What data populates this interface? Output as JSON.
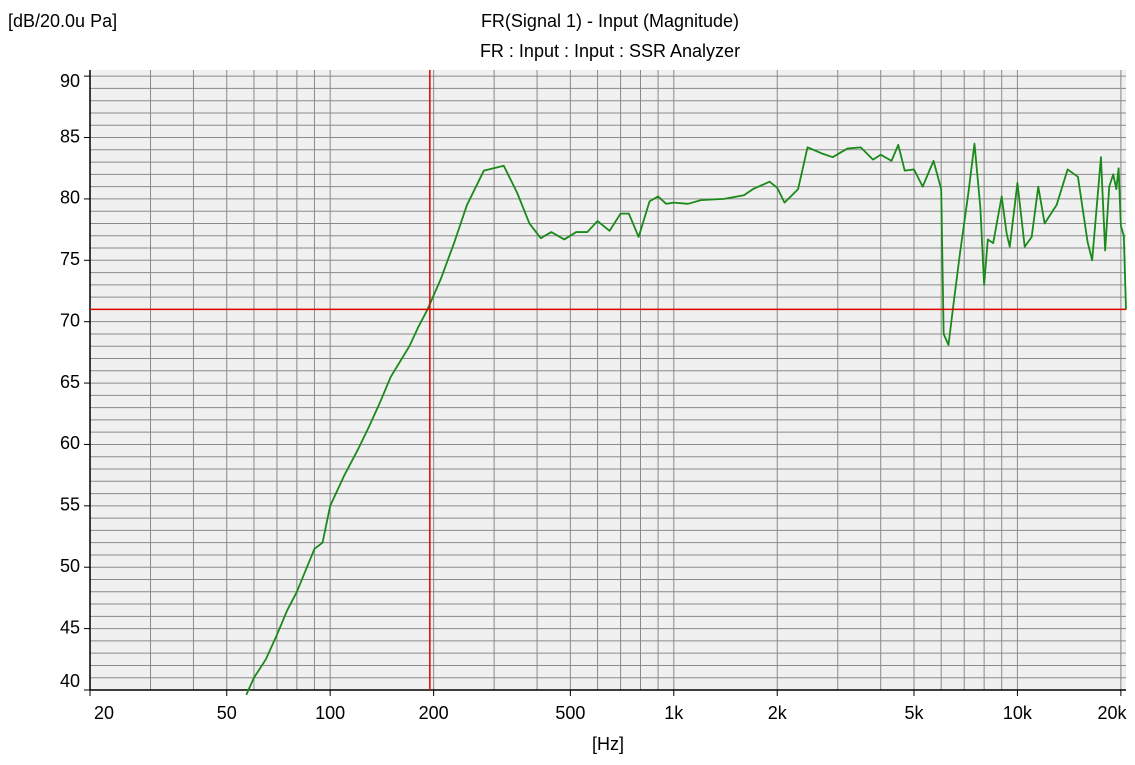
{
  "chart_data": {
    "type": "line",
    "title": "FR(Signal 1) - Input (Magnitude)",
    "subtitle": "FR : Input : Input : SSR Analyzer",
    "y_label": "[dB/20.0u Pa]",
    "x_label": "[Hz]",
    "x_scale": "log",
    "xlim": [
      20,
      20700
    ],
    "ylim": [
      40,
      90.5
    ],
    "xticks": [
      20,
      50,
      100,
      200,
      500,
      {
        "value": 1000,
        "label": "1k"
      },
      {
        "value": 2000,
        "label": "2k"
      },
      {
        "value": 5000,
        "label": "5k"
      },
      {
        "value": 10000,
        "label": "10k"
      },
      {
        "value": 20000,
        "label": "20k"
      }
    ],
    "yticks": [
      40,
      45,
      50,
      55,
      60,
      65,
      70,
      75,
      80,
      85,
      90
    ],
    "xgrid": [
      20,
      30,
      40,
      50,
      60,
      70,
      80,
      90,
      100,
      200,
      300,
      400,
      500,
      600,
      700,
      800,
      900,
      1000,
      2000,
      3000,
      4000,
      5000,
      6000,
      7000,
      8000,
      9000,
      10000,
      20000
    ],
    "ygrid": [
      41,
      42,
      43,
      44,
      45,
      46,
      47,
      48,
      49,
      50,
      51,
      52,
      53,
      54,
      55,
      56,
      57,
      58,
      59,
      60,
      61,
      62,
      63,
      64,
      65,
      66,
      67,
      68,
      69,
      70,
      71,
      72,
      73,
      74,
      75,
      76,
      77,
      78,
      79,
      80,
      81,
      82,
      83,
      84,
      85,
      86,
      87,
      88,
      89,
      90
    ],
    "grid": true,
    "cursor": {
      "x": 195,
      "y": 71,
      "color": "#e00000"
    },
    "series": [
      {
        "color": "#1a8a1a",
        "x": [
          57,
          60,
          65,
          70,
          75,
          80,
          90,
          95,
          100,
          110,
          120,
          130,
          140,
          150,
          170,
          180,
          192,
          210,
          230,
          250,
          280,
          320,
          350,
          380,
          410,
          440,
          480,
          520,
          560,
          600,
          650,
          700,
          740,
          790,
          850,
          900,
          950,
          1000,
          1100,
          1200,
          1400,
          1600,
          1700,
          1900,
          2000,
          2100,
          2300,
          2450,
          2700,
          2900,
          3200,
          3500,
          3800,
          4000,
          4300,
          4500,
          4700,
          5000,
          5300,
          5700,
          6000,
          6100,
          6300,
          6500,
          6800,
          7200,
          7500,
          7800,
          8000,
          8200,
          8500,
          9000,
          9300,
          9500,
          10000,
          10500,
          11000,
          11500,
          12000,
          13000,
          14000,
          15000,
          16000,
          16500,
          17500,
          18000,
          18500,
          19000,
          19400,
          19700,
          20000,
          20400,
          20700
        ],
        "values": [
          39.6,
          41,
          42.5,
          44.5,
          46.5,
          48,
          51.5,
          52,
          55,
          57.5,
          59.5,
          61.5,
          63.5,
          65.5,
          68,
          69.5,
          71,
          73.5,
          76.5,
          79.5,
          82.3,
          82.7,
          80.5,
          78,
          76.8,
          77.3,
          76.7,
          77.3,
          77.3,
          78.2,
          77.4,
          78.8,
          78.8,
          76.9,
          79.8,
          80.2,
          79.6,
          79.7,
          79.6,
          79.9,
          80,
          80.3,
          80.8,
          81.4,
          80.9,
          79.7,
          80.8,
          84.2,
          83.7,
          83.4,
          84.1,
          84.2,
          83.2,
          83.6,
          83.1,
          84.4,
          82.3,
          82.4,
          81,
          83.1,
          80.8,
          69,
          68.1,
          71.2,
          75.5,
          80.5,
          84.5,
          79.3,
          73,
          76.7,
          76.4,
          80.2,
          77.2,
          76.1,
          81.3,
          76.1,
          76.9,
          81,
          78,
          79.5,
          82.4,
          81.8,
          76.5,
          75,
          83.4,
          75.8,
          81,
          82,
          80.8,
          82.5,
          77.8,
          77,
          71
        ]
      }
    ]
  }
}
